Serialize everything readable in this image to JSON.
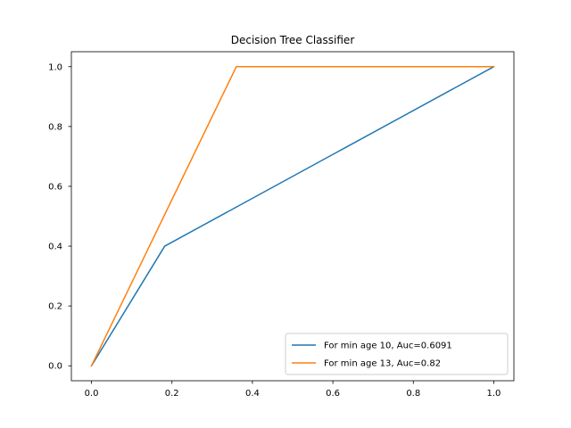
{
  "chart_data": {
    "type": "line",
    "title": "Decision Tree Classifier",
    "xlabel": "",
    "ylabel": "",
    "xlim": [
      -0.05,
      1.05
    ],
    "ylim": [
      -0.05,
      1.05
    ],
    "xticks": [
      0.0,
      0.2,
      0.4,
      0.6,
      0.8,
      1.0
    ],
    "xtick_labels": [
      "0.0",
      "0.2",
      "0.4",
      "0.6",
      "0.8",
      "1.0"
    ],
    "yticks": [
      0.0,
      0.2,
      0.4,
      0.6,
      0.8,
      1.0
    ],
    "ytick_labels": [
      "0.0",
      "0.2",
      "0.4",
      "0.6",
      "0.8",
      "1.0"
    ],
    "grid": false,
    "legend_position": "lower-right",
    "series": [
      {
        "name": "For min age 10, Auc=0.6091",
        "color": "#1f77b4",
        "x": [
          0.0,
          0.182,
          1.0
        ],
        "y": [
          0.0,
          0.4,
          1.0
        ]
      },
      {
        "name": "For min age 13, Auc=0.82",
        "color": "#ff7f0e",
        "x": [
          0.0,
          0.36,
          1.0
        ],
        "y": [
          0.0,
          1.0,
          1.0
        ]
      }
    ]
  }
}
